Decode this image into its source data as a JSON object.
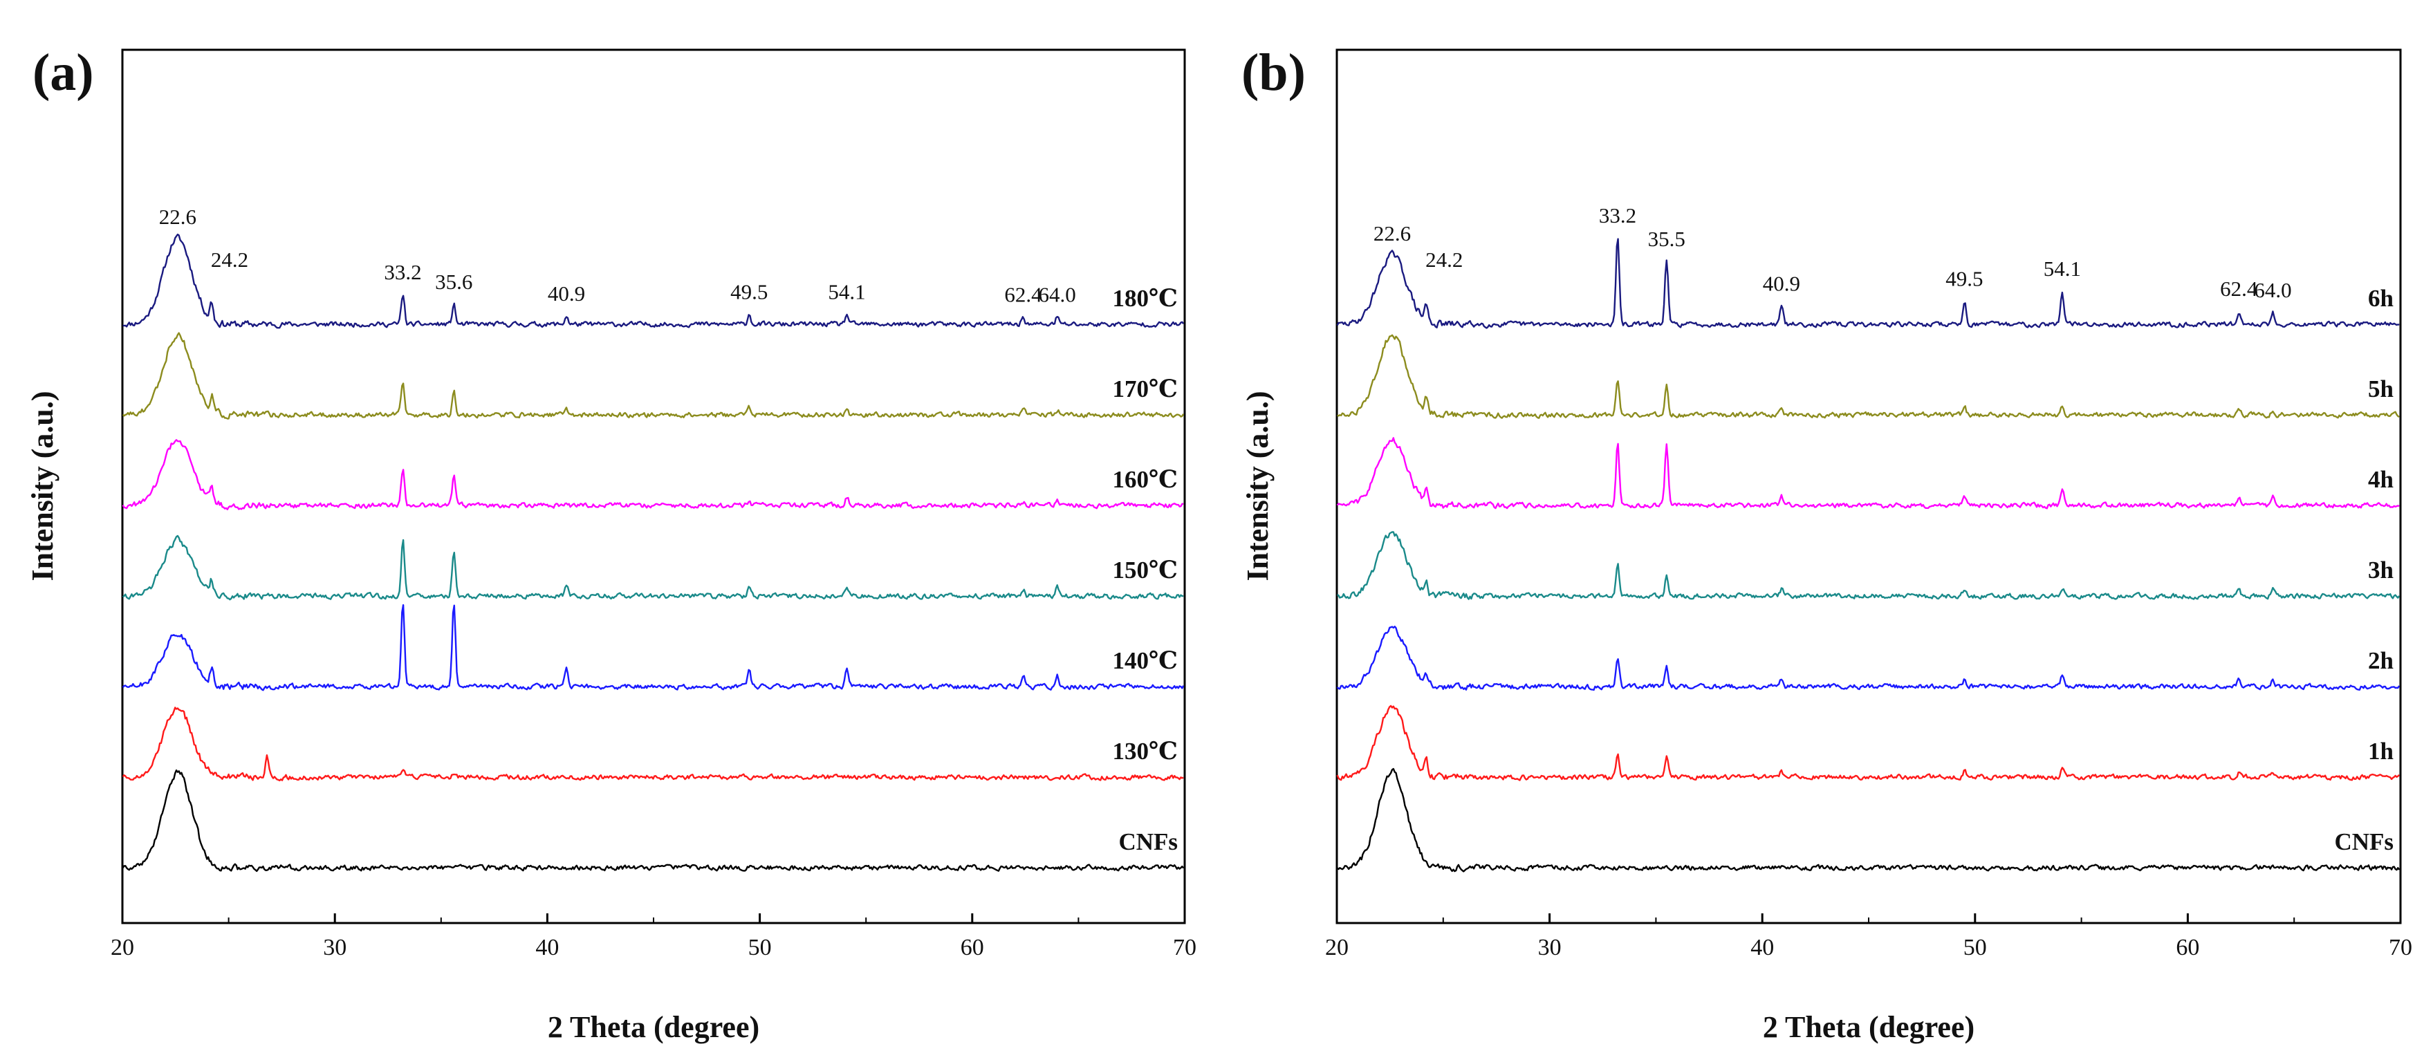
{
  "chart_data": [
    {
      "panel": "(a)",
      "type": "line",
      "title": "",
      "xlabel": "2 Theta (degree)",
      "ylabel": "Intensity (a.u.)",
      "xlim": [
        20,
        70
      ],
      "xticks": [
        20,
        30,
        40,
        50,
        60,
        70
      ],
      "yticks": [],
      "grid": false,
      "legend": "labels at right end of each trace",
      "peak_labels": [
        {
          "label": "22.6",
          "x": 22.6
        },
        {
          "label": "24.2",
          "x": 24.2
        },
        {
          "label": "33.2",
          "x": 33.2
        },
        {
          "label": "35.6",
          "x": 35.6
        },
        {
          "label": "40.9",
          "x": 40.9
        },
        {
          "label": "49.5",
          "x": 49.5
        },
        {
          "label": "54.1",
          "x": 54.1
        },
        {
          "label": "62.4",
          "x": 62.4
        },
        {
          "label": "64.0",
          "x": 64.0
        }
      ],
      "series": [
        {
          "name": "180℃",
          "color": "#1a1a80",
          "offset": 6,
          "bump": 2.6,
          "peaks": [
            [
              24.2,
              0.55
            ],
            [
              33.2,
              0.9
            ],
            [
              35.6,
              0.6
            ],
            [
              40.9,
              0.25
            ],
            [
              49.5,
              0.3
            ],
            [
              54.1,
              0.3
            ],
            [
              62.4,
              0.22
            ],
            [
              64.0,
              0.22
            ]
          ]
        },
        {
          "name": "170℃",
          "color": "#8c8c1e",
          "offset": 5,
          "bump": 2.4,
          "peaks": [
            [
              24.2,
              0.5
            ],
            [
              33.2,
              1.0
            ],
            [
              35.6,
              0.75
            ],
            [
              40.9,
              0.2
            ],
            [
              49.5,
              0.25
            ],
            [
              54.1,
              0.22
            ],
            [
              62.4,
              0.15
            ],
            [
              64.0,
              0.15
            ]
          ]
        },
        {
          "name": "160℃",
          "color": "#ff00ff",
          "offset": 4,
          "bump": 2.0,
          "peaks": [
            [
              24.2,
              0.45
            ],
            [
              33.2,
              1.1
            ],
            [
              35.6,
              0.9
            ],
            [
              40.9,
              0.15
            ],
            [
              49.5,
              0.15
            ],
            [
              54.1,
              0.25
            ],
            [
              62.4,
              0.1
            ],
            [
              64.0,
              0.15
            ]
          ]
        },
        {
          "name": "150℃",
          "color": "#1a8a8a",
          "offset": 3,
          "bump": 1.7,
          "peaks": [
            [
              24.2,
              0.4
            ],
            [
              33.2,
              1.7
            ],
            [
              35.6,
              1.3
            ],
            [
              40.9,
              0.3
            ],
            [
              49.5,
              0.28
            ],
            [
              54.1,
              0.3
            ],
            [
              62.4,
              0.18
            ],
            [
              64.0,
              0.25
            ]
          ]
        },
        {
          "name": "140℃",
          "color": "#1a1aff",
          "offset": 2,
          "bump": 1.6,
          "peaks": [
            [
              24.2,
              0.45
            ],
            [
              33.2,
              2.6
            ],
            [
              35.6,
              2.6
            ],
            [
              40.9,
              0.55
            ],
            [
              49.5,
              0.6
            ],
            [
              54.1,
              0.55
            ],
            [
              62.4,
              0.3
            ],
            [
              64.0,
              0.35
            ]
          ]
        },
        {
          "name": "130℃",
          "color": "#ff1a1a",
          "offset": 1,
          "bump": 2.1,
          "peaks": [
            [
              26.8,
              0.6
            ],
            [
              33.2,
              0.2
            ],
            [
              34.2,
              0.15
            ],
            [
              35.6,
              0.15
            ]
          ]
        },
        {
          "name": "CNFs",
          "color": "#000000",
          "offset": 0,
          "bump": 2.9,
          "peaks": []
        }
      ]
    },
    {
      "panel": "(b)",
      "type": "line",
      "title": "",
      "xlabel": "2 Theta (degree)",
      "ylabel": "Intensity (a.u.)",
      "xlim": [
        20,
        70
      ],
      "xticks": [
        20,
        30,
        40,
        50,
        60,
        70
      ],
      "yticks": [],
      "grid": false,
      "legend": "labels at right end of each trace",
      "peak_labels": [
        {
          "label": "22.6",
          "x": 22.6
        },
        {
          "label": "24.2",
          "x": 24.2
        },
        {
          "label": "33.2",
          "x": 33.2
        },
        {
          "label": "35.5",
          "x": 35.5
        },
        {
          "label": "40.9",
          "x": 40.9
        },
        {
          "label": "49.5",
          "x": 49.5
        },
        {
          "label": "54.1",
          "x": 54.1
        },
        {
          "label": "62.4",
          "x": 62.4
        },
        {
          "label": "64.0",
          "x": 64.0
        }
      ],
      "series": [
        {
          "name": "6h",
          "color": "#1a1a80",
          "offset": 6,
          "bump": 2.1,
          "peaks": [
            [
              24.2,
              0.5
            ],
            [
              33.2,
              2.6
            ],
            [
              35.5,
              1.9
            ],
            [
              40.9,
              0.55
            ],
            [
              49.5,
              0.7
            ],
            [
              54.1,
              1.0
            ],
            [
              62.4,
              0.4
            ],
            [
              64.0,
              0.35
            ]
          ]
        },
        {
          "name": "5h",
          "color": "#8c8c1e",
          "offset": 5,
          "bump": 2.4,
          "peaks": [
            [
              24.2,
              0.4
            ],
            [
              33.2,
              1.1
            ],
            [
              35.5,
              0.9
            ],
            [
              40.9,
              0.2
            ],
            [
              49.5,
              0.25
            ],
            [
              54.1,
              0.3
            ],
            [
              62.4,
              0.2
            ],
            [
              64.0,
              0.15
            ]
          ]
        },
        {
          "name": "4h",
          "color": "#ff00ff",
          "offset": 4,
          "bump": 2.0,
          "peaks": [
            [
              24.2,
              0.45
            ],
            [
              33.2,
              1.9
            ],
            [
              35.5,
              1.8
            ],
            [
              40.9,
              0.3
            ],
            [
              49.5,
              0.3
            ],
            [
              54.1,
              0.5
            ],
            [
              62.4,
              0.25
            ],
            [
              64.0,
              0.3
            ]
          ]
        },
        {
          "name": "3h",
          "color": "#1a8a8a",
          "offset": 3,
          "bump": 1.9,
          "peaks": [
            [
              24.2,
              0.3
            ],
            [
              33.2,
              1.0
            ],
            [
              35.5,
              0.6
            ],
            [
              40.9,
              0.2
            ],
            [
              49.5,
              0.2
            ],
            [
              54.1,
              0.25
            ],
            [
              62.4,
              0.15
            ],
            [
              64.0,
              0.2
            ]
          ]
        },
        {
          "name": "2h",
          "color": "#1a1aff",
          "offset": 2,
          "bump": 1.8,
          "peaks": [
            [
              24.2,
              0.35
            ],
            [
              33.2,
              0.9
            ],
            [
              35.5,
              0.6
            ],
            [
              40.9,
              0.2
            ],
            [
              49.5,
              0.2
            ],
            [
              54.1,
              0.3
            ],
            [
              62.4,
              0.25
            ],
            [
              64.0,
              0.2
            ]
          ]
        },
        {
          "name": "1h",
          "color": "#ff1a1a",
          "offset": 1,
          "bump": 2.1,
          "peaks": [
            [
              24.2,
              0.4
            ],
            [
              33.2,
              0.75
            ],
            [
              35.5,
              0.6
            ],
            [
              40.9,
              0.15
            ],
            [
              49.5,
              0.2
            ],
            [
              54.1,
              0.25
            ],
            [
              62.4,
              0.15
            ],
            [
              64.0,
              0.15
            ]
          ]
        },
        {
          "name": "CNFs",
          "color": "#000000",
          "offset": 0,
          "bump": 2.9,
          "peaks": []
        }
      ]
    }
  ]
}
